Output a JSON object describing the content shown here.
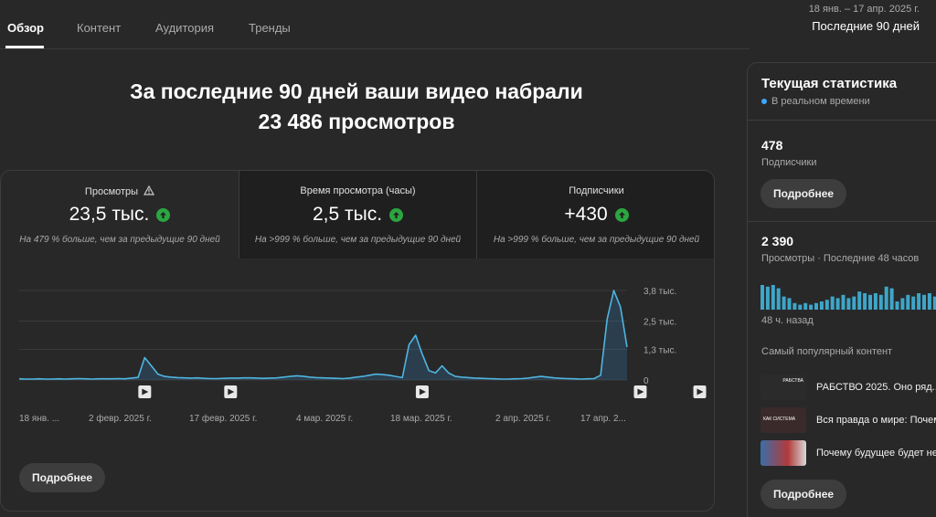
{
  "tabs": [
    "Обзор",
    "Контент",
    "Аудитория",
    "Тренды"
  ],
  "range": {
    "dates": "18 янв. – 17 апр. 2025 г.",
    "period": "Последние 90 дней"
  },
  "headline": {
    "line1": "За последние 90 дней ваши видео набрали",
    "line2": "23 486 просмотров"
  },
  "metrics": [
    {
      "label": "Просмотры",
      "value": "23,5 тыс.",
      "note": "На 479 % больше, чем за предыдущие 90 дней"
    },
    {
      "label": "Время просмотра (часы)",
      "value": "2,5 тыс.",
      "note": "На >999 % больше, чем за предыдущие 90 дней"
    },
    {
      "label": "Подписчики",
      "value": "+430",
      "note": "На >999 % больше, чем за предыдущие 90 дней"
    }
  ],
  "chart_data": {
    "type": "area",
    "y_ticks": [
      "3,8 тыс.",
      "2,5 тыс.",
      "1,3 тыс.",
      "0"
    ],
    "ylim": [
      0,
      3800
    ],
    "y_tick_values": [
      3800,
      2500,
      1300,
      0
    ],
    "x_labels": [
      "18 янв. ...",
      "2 февр. 2025 г.",
      "17 февр. 2025 г.",
      "4 мар. 2025 г.",
      "18 мар. 2025 г.",
      "2 апр. 2025 г.",
      "17 апр. 2..."
    ],
    "values": [
      50,
      40,
      40,
      50,
      40,
      40,
      50,
      40,
      50,
      60,
      50,
      40,
      50,
      50,
      50,
      60,
      50,
      80,
      110,
      950,
      600,
      250,
      150,
      120,
      100,
      90,
      80,
      90,
      70,
      60,
      60,
      70,
      80,
      80,
      90,
      90,
      80,
      70,
      80,
      90,
      120,
      150,
      180,
      160,
      120,
      100,
      90,
      80,
      70,
      60,
      80,
      120,
      150,
      200,
      250,
      230,
      200,
      150,
      100,
      1500,
      1900,
      1100,
      400,
      300,
      600,
      300,
      150,
      120,
      100,
      80,
      70,
      60,
      50,
      40,
      40,
      50,
      60,
      80,
      120,
      150,
      120,
      90,
      70,
      60,
      50,
      40,
      50,
      60,
      200,
      2600,
      3800,
      3100,
      1400
    ],
    "upload_markers": [
      19,
      32,
      61,
      94,
      103
    ]
  },
  "buttons": {
    "more": "Подробнее"
  },
  "side": {
    "title": "Текущая статистика",
    "realtime": "В реальном времени",
    "subs_value": "478",
    "subs_label": "Подписчики",
    "views_value": "2 390",
    "views_label": "Просмотры · Последние 48 часов",
    "mini_bars": [
      0.75,
      0.7,
      0.75,
      0.65,
      0.4,
      0.35,
      0.2,
      0.15,
      0.2,
      0.15,
      0.2,
      0.25,
      0.3,
      0.4,
      0.35,
      0.45,
      0.35,
      0.4,
      0.55,
      0.5,
      0.45,
      0.5,
      0.45,
      0.7,
      0.65,
      0.25,
      0.35,
      0.45,
      0.4,
      0.5,
      0.45,
      0.5,
      0.4,
      0.55,
      0.45,
      0.35,
      0.3
    ],
    "mini_caption": "48 ч. назад",
    "popular": "Самый популярный контент",
    "videos": [
      {
        "title": "РАБСТВО 2025. Оно ряд...",
        "thumb_text": "РАБСТВА",
        "color": "#2b2b2b"
      },
      {
        "title": "Вся правда о мире: Почем...",
        "thumb_text": "КАК СИСТЕМА",
        "color": "#3a2a2a"
      },
      {
        "title": "Почему будущее будет не...",
        "thumb_text": "",
        "color": "#b23a3a"
      }
    ]
  }
}
